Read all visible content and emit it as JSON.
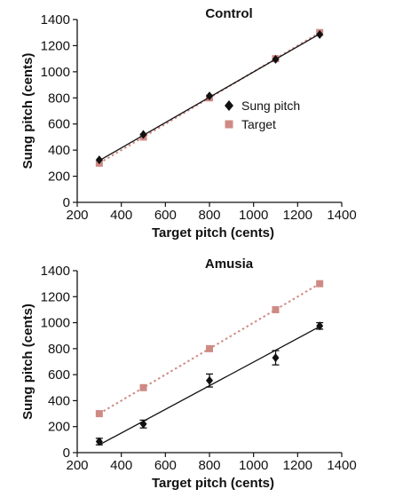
{
  "chart_data": [
    {
      "type": "line",
      "title": "Control",
      "xlabel": "Target pitch (cents)",
      "ylabel": "Sung pitch (cents)",
      "xlim": [
        200,
        1400
      ],
      "ylim": [
        0,
        1400
      ],
      "xticks": [
        200,
        400,
        600,
        800,
        1000,
        1200,
        1400
      ],
      "yticks": [
        0,
        200,
        400,
        600,
        800,
        1000,
        1200,
        1400
      ],
      "grid": false,
      "legend": "right",
      "series": [
        {
          "name": "Sung pitch",
          "marker": "diamond",
          "color": "#111111",
          "line": "solid",
          "x": [
            300,
            500,
            800,
            1100,
            1300
          ],
          "values": [
            325,
            520,
            815,
            1095,
            1285
          ],
          "error": [
            0,
            0,
            0,
            0,
            0
          ],
          "fit": [
            [
              300,
              320
            ],
            [
              1300,
              1290
            ]
          ]
        },
        {
          "name": "Target",
          "marker": "square",
          "color": "#cf8a84",
          "line": "dotted",
          "x": [
            300,
            500,
            800,
            1100,
            1300
          ],
          "values": [
            300,
            500,
            800,
            1100,
            1300
          ],
          "error": [
            0,
            0,
            0,
            0,
            0
          ],
          "fit": [
            [
              300,
              300
            ],
            [
              1300,
              1300
            ]
          ]
        }
      ]
    },
    {
      "type": "line",
      "title": "Amusia",
      "xlabel": "Target pitch (cents)",
      "ylabel": "Sung pitch (cents)",
      "xlim": [
        200,
        1400
      ],
      "ylim": [
        0,
        1400
      ],
      "xticks": [
        200,
        400,
        600,
        800,
        1000,
        1200,
        1400
      ],
      "yticks": [
        0,
        200,
        400,
        600,
        800,
        1000,
        1200,
        1400
      ],
      "grid": false,
      "series": [
        {
          "name": "Sung pitch",
          "marker": "diamond",
          "color": "#111111",
          "line": "solid",
          "x": [
            300,
            500,
            800,
            1100,
            1300
          ],
          "values": [
            85,
            220,
            555,
            730,
            975
          ],
          "error": [
            25,
            30,
            50,
            55,
            25
          ],
          "fit": [
            [
              300,
              60
            ],
            [
              1300,
              970
            ]
          ]
        },
        {
          "name": "Target",
          "marker": "square",
          "color": "#cf8a84",
          "line": "dotted",
          "x": [
            300,
            500,
            800,
            1100,
            1300
          ],
          "values": [
            300,
            500,
            800,
            1100,
            1300
          ],
          "error": [
            0,
            0,
            0,
            0,
            0
          ],
          "fit": [
            [
              300,
              300
            ],
            [
              1300,
              1300
            ]
          ]
        }
      ]
    }
  ]
}
